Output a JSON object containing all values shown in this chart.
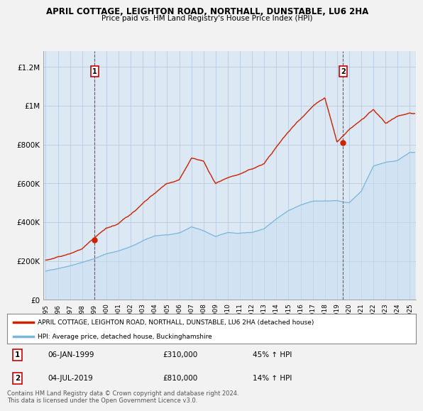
{
  "title": "APRIL COTTAGE, LEIGHTON ROAD, NORTHALL, DUNSTABLE, LU6 2HA",
  "subtitle": "Price paid vs. HM Land Registry's House Price Index (HPI)",
  "legend_line1": "APRIL COTTAGE, LEIGHTON ROAD, NORTHALL, DUNSTABLE, LU6 2HA (detached house)",
  "legend_line2": "HPI: Average price, detached house, Buckinghamshire",
  "footer": "Contains HM Land Registry data © Crown copyright and database right 2024.\nThis data is licensed under the Open Government Licence v3.0.",
  "sale1_label": "1",
  "sale1_date": "06-JAN-1999",
  "sale1_price": "£310,000",
  "sale1_hpi": "45% ↑ HPI",
  "sale1_x": 1999.03,
  "sale1_y": 310000,
  "sale2_label": "2",
  "sale2_date": "04-JUL-2019",
  "sale2_price": "£810,000",
  "sale2_hpi": "14% ↑ HPI",
  "sale2_x": 2019.5,
  "sale2_y": 810000,
  "hpi_color": "#7ab6d9",
  "hpi_fill_color": "#c8dff0",
  "price_color": "#cc2200",
  "dashed_color": "#cc2200",
  "background_color": "#f2f2f2",
  "plot_background": "#dce9f5",
  "ylim": [
    0,
    1280000
  ],
  "xlim_start": 1994.8,
  "xlim_end": 2025.5,
  "yticks": [
    0,
    200000,
    400000,
    600000,
    800000,
    1000000,
    1200000
  ],
  "ytick_labels": [
    "£0",
    "£200K",
    "£400K",
    "£600K",
    "£800K",
    "£1M",
    "£1.2M"
  ],
  "xticks": [
    1995,
    1996,
    1997,
    1998,
    1999,
    2000,
    2001,
    2002,
    2003,
    2004,
    2005,
    2006,
    2007,
    2008,
    2009,
    2010,
    2011,
    2012,
    2013,
    2014,
    2015,
    2016,
    2017,
    2018,
    2019,
    2020,
    2021,
    2022,
    2023,
    2024,
    2025
  ],
  "hpi_anchors_years": [
    1995,
    1996,
    1997,
    1998,
    1999,
    2000,
    2001,
    2002,
    2003,
    2004,
    2005,
    2006,
    2007,
    2008,
    2009,
    2010,
    2011,
    2012,
    2013,
    2014,
    2015,
    2016,
    2017,
    2018,
    2019,
    2020,
    2021,
    2022,
    2023,
    2024,
    2025
  ],
  "hpi_anchors_vals": [
    148000,
    162000,
    178000,
    195000,
    215000,
    240000,
    255000,
    275000,
    305000,
    330000,
    335000,
    345000,
    375000,
    355000,
    325000,
    345000,
    340000,
    345000,
    365000,
    415000,
    460000,
    490000,
    510000,
    510000,
    510000,
    500000,
    560000,
    690000,
    710000,
    720000,
    760000
  ],
  "price_anchors_years": [
    1995,
    1996,
    1997,
    1998,
    1999,
    2000,
    2001,
    2002,
    2003,
    2004,
    2005,
    2006,
    2007,
    2008,
    2009,
    2010,
    2011,
    2012,
    2013,
    2014,
    2015,
    2016,
    2017,
    2018,
    2019,
    2020,
    2021,
    2022,
    2023,
    2024,
    2025
  ],
  "price_anchors_vals": [
    205000,
    220000,
    238000,
    262000,
    310000,
    360000,
    385000,
    435000,
    490000,
    540000,
    590000,
    610000,
    720000,
    700000,
    585000,
    620000,
    640000,
    665000,
    695000,
    780000,
    860000,
    930000,
    1000000,
    1040000,
    810000,
    870000,
    920000,
    970000,
    900000,
    940000,
    960000
  ]
}
